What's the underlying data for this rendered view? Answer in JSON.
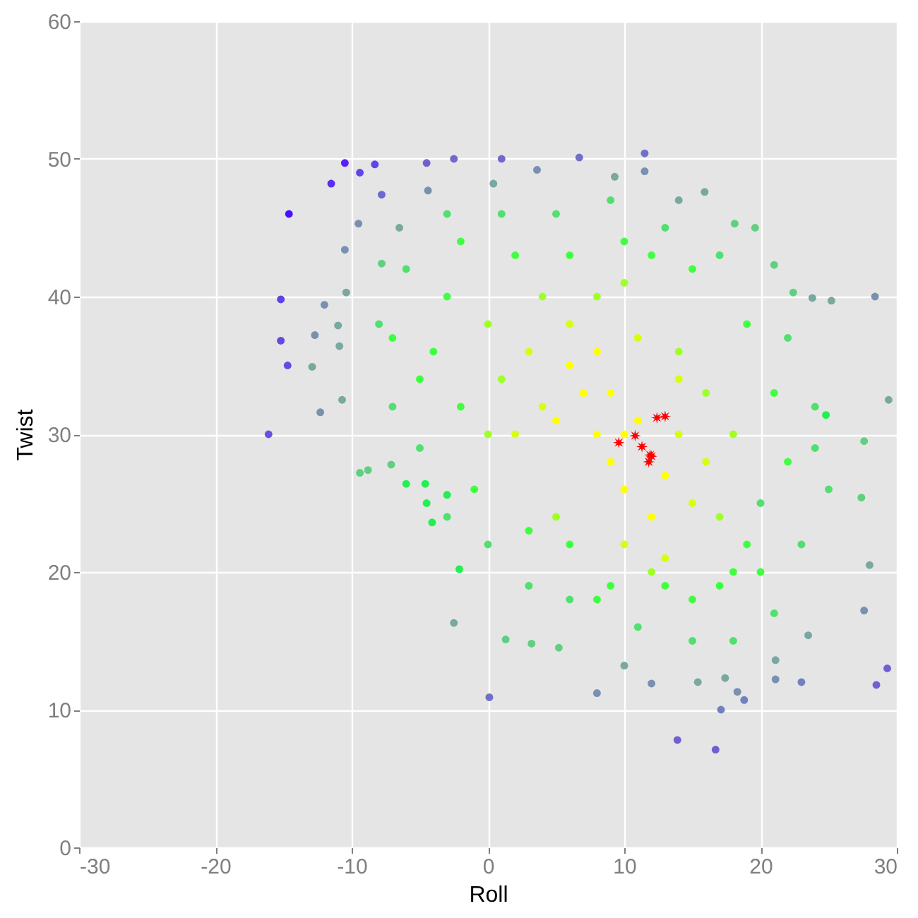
{
  "chart_data": {
    "type": "scatter",
    "xlabel": "Roll",
    "ylabel": "Twist",
    "xlim": [
      -30,
      30
    ],
    "ylim": [
      0,
      60
    ],
    "xticks": [
      -30,
      -20,
      -10,
      0,
      10,
      20,
      30
    ],
    "yticks": [
      0,
      10,
      20,
      30,
      40,
      50,
      60
    ],
    "grid": true,
    "marker": "circle",
    "series": [
      {
        "x": [
          -10.5,
          -8.3,
          -9.4,
          -11.5,
          -14.6,
          -7.8,
          -15.2,
          -15.2,
          -14.7,
          -16.1,
          -4.5,
          -2.5,
          1.0,
          6.7,
          11.5,
          0.1,
          13.9,
          16.7,
          28.5,
          29.3,
          23.0,
          17.1,
          18.8,
          -9.5,
          -10.5,
          -12.0,
          -12.7,
          -12.3,
          11.5,
          3.6,
          28.4,
          27.6,
          18.3,
          21.1,
          8.0,
          12.0,
          -4.4,
          -12.9,
          -10.4,
          -11.0,
          -10.9,
          -10.7,
          -6.5,
          0.4,
          9.3,
          15.9,
          14.0,
          15.4,
          17.4,
          10.0,
          21.1,
          23.5,
          -2.5,
          29.4,
          28.0,
          25.2,
          23.8,
          -7.8,
          -9.4,
          -8.8,
          -7.1,
          22.4,
          21.0,
          19.6,
          18.1,
          27.4,
          27.6,
          5.2,
          3.2,
          1.3,
          -6.0,
          -4.6,
          -4.5,
          -4.1,
          -3.0,
          -2.1,
          24.8,
          7,
          8,
          9,
          10,
          6,
          11,
          12,
          5,
          9,
          13,
          10,
          8,
          3,
          4,
          14,
          15,
          6,
          10,
          2,
          16,
          11,
          13,
          14,
          0,
          1,
          0,
          17,
          18,
          14,
          8,
          4,
          12,
          5,
          16,
          10,
          -3,
          -4,
          -2,
          -5,
          19,
          20,
          17,
          15,
          9,
          6,
          -1,
          2,
          6,
          10,
          15,
          19,
          21,
          22,
          12,
          -7,
          8,
          13,
          18,
          3,
          -2,
          -6,
          -8,
          -7,
          -3,
          1,
          5,
          9,
          13,
          17,
          22,
          24,
          25,
          23,
          21,
          18,
          15,
          11,
          6,
          3,
          0,
          -3,
          -5,
          20,
          24
        ],
        "values": [
          49.7,
          49.6,
          49.0,
          48.2,
          46.0,
          47.4,
          39.8,
          36.8,
          35.0,
          30.0,
          49.7,
          50.0,
          50.0,
          50.1,
          50.4,
          10.9,
          7.8,
          7.1,
          11.8,
          13.0,
          12.0,
          10.0,
          10.7,
          45.3,
          43.4,
          39.4,
          37.2,
          31.6,
          49.1,
          49.2,
          40.0,
          17.2,
          11.3,
          12.2,
          11.2,
          11.9,
          47.7,
          34.9,
          40.3,
          37.9,
          36.4,
          32.5,
          45.0,
          48.2,
          48.7,
          47.6,
          47.0,
          12.0,
          12.3,
          13.2,
          13.6,
          15.4,
          16.3,
          32.5,
          20.5,
          39.7,
          39.9,
          42.4,
          27.2,
          27.4,
          27.8,
          40.3,
          42.3,
          45.0,
          45.3,
          25.4,
          29.5,
          14.5,
          14.8,
          15.1,
          26.4,
          26.4,
          25.0,
          23.6,
          25.6,
          20.2,
          31.4,
          33,
          30,
          28,
          26,
          35,
          31,
          24,
          31,
          33,
          27,
          30,
          36,
          36,
          32,
          30,
          25,
          38,
          22,
          30,
          28,
          37,
          21,
          34,
          38,
          34,
          30,
          24,
          30,
          36,
          40,
          40,
          20,
          24,
          33,
          41,
          40,
          36,
          32,
          34,
          22,
          20,
          19,
          18,
          19,
          22,
          26,
          43,
          43,
          44,
          42,
          38,
          33,
          28,
          43,
          37,
          18,
          19,
          20,
          23,
          44,
          42,
          38,
          32,
          46,
          46,
          46,
          47,
          45,
          43,
          37,
          32,
          26,
          22,
          17,
          15,
          15,
          16,
          18,
          19,
          22,
          24,
          29,
          25,
          29
        ],
        "colors": [
          "#5a20f8",
          "#6444e8",
          "#6444e8",
          "#5a30f0",
          "#4810ff",
          "#6d68d0",
          "#6040e8",
          "#6848e0",
          "#6848e0",
          "#6a50dc",
          "#6e60d0",
          "#7068cc",
          "#7068cc",
          "#7070c8",
          "#7070c8",
          "#7070c8",
          "#6e60d0",
          "#6e60d0",
          "#6e60d0",
          "#6e60d0",
          "#7080c0",
          "#7080c0",
          "#7080c0",
          "#7a90b0",
          "#7a90b0",
          "#7a90b0",
          "#7a90b0",
          "#7a90b0",
          "#7a90b0",
          "#7a90b0",
          "#7a90b0",
          "#7a90b0",
          "#7a90b0",
          "#7a90b0",
          "#7a90b0",
          "#7a90b0",
          "#7a90b0",
          "#78a8a0",
          "#78a8a0",
          "#78a8a0",
          "#78a8a0",
          "#78a8a0",
          "#78a8a0",
          "#78a8a0",
          "#78a8a0",
          "#78a8a0",
          "#78a8a0",
          "#78a8a0",
          "#78a8a0",
          "#78a8a0",
          "#78a8a0",
          "#78a8a0",
          "#78a8a0",
          "#78a8a0",
          "#78a8a0",
          "#78a8a0",
          "#78a8a0",
          "#60d080",
          "#60d080",
          "#60d080",
          "#60d080",
          "#60d080",
          "#60d080",
          "#60d080",
          "#60d080",
          "#60d080",
          "#60d080",
          "#60d080",
          "#60d080",
          "#60d080",
          "#20f050",
          "#20f050",
          "#20f050",
          "#20f050",
          "#20f050",
          "#20f050",
          "#20f050",
          "#ffff00",
          "#ffff00",
          "#ffff00",
          "#ffff00",
          "#ffff00",
          "#ffff00",
          "#ffff00",
          "#ffff00",
          "#ffff00",
          "#ffff00",
          "#ffff00",
          "#ffff00",
          "#d4ff10",
          "#d4ff10",
          "#d4ff10",
          "#d4ff10",
          "#d4ff10",
          "#d4ff10",
          "#d4ff10",
          "#d4ff10",
          "#d4ff10",
          "#d4ff10",
          "#d4ff10",
          "#a0ff28",
          "#a0ff28",
          "#a0ff28",
          "#a0ff28",
          "#a0ff28",
          "#a0ff28",
          "#a0ff28",
          "#a0ff28",
          "#a0ff28",
          "#a0ff28",
          "#a0ff28",
          "#a0ff28",
          "#40ff40",
          "#40ff40",
          "#40ff40",
          "#40ff40",
          "#40ff40",
          "#40ff40",
          "#40ff40",
          "#40ff40",
          "#40ff40",
          "#40ff40",
          "#40ff40",
          "#40ff40",
          "#40ff40",
          "#40ff40",
          "#40ff40",
          "#40ff40",
          "#40ff40",
          "#40ff40",
          "#40ff40",
          "#40ff40",
          "#40ff40",
          "#40ff40",
          "#40ff40",
          "#40ff40",
          "#40ff40",
          "#50e070",
          "#50e070",
          "#50e070",
          "#50e070",
          "#50e070",
          "#50e070",
          "#50e070",
          "#50e070",
          "#50e070",
          "#50e070",
          "#50e070",
          "#50e070",
          "#50e070",
          "#50e070",
          "#50e070",
          "#50e070",
          "#50e070",
          "#50e070",
          "#50e070",
          "#50e070",
          "#50e070",
          "#50e070",
          "#50e070",
          "#50e070"
        ]
      },
      {
        "marker": "star",
        "color": "#ff0000",
        "x": [
          9.6,
          10.8,
          11.3,
          12.4,
          13.0,
          11.9,
          11.8,
          12.0
        ],
        "values": [
          29.4,
          29.9,
          29.1,
          31.2,
          31.3,
          28.5,
          28.0,
          28.4
        ]
      }
    ]
  }
}
